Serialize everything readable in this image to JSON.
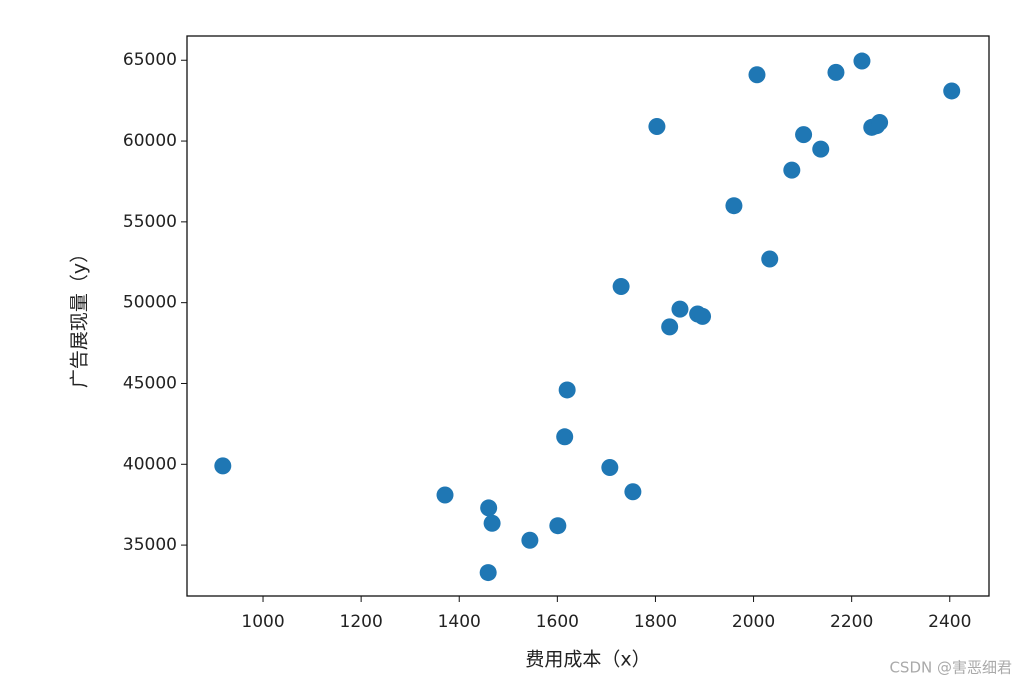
{
  "chart_data": {
    "type": "scatter",
    "xlabel": "费用成本（x）",
    "ylabel": "广告展现量（y）",
    "x": [
      918,
      1371,
      1460,
      1467,
      1459,
      1544,
      1601,
      1615,
      1620,
      1707,
      1754,
      1730,
      1829,
      1850,
      1886,
      1896,
      1803,
      1960,
      2033,
      2007,
      2078,
      2102,
      2137,
      2168,
      2221,
      2241,
      2251,
      2257,
      2404
    ],
    "series": [
      {
        "name": "y",
        "color": "#1f77b4",
        "values": [
          39900,
          38100,
          37300,
          36350,
          33300,
          35300,
          36200,
          41700,
          44600,
          39800,
          38300,
          51000,
          48500,
          49600,
          49300,
          49150,
          60900,
          56000,
          52700,
          64100,
          58200,
          60400,
          59500,
          64250,
          64950,
          60850,
          60950,
          61150,
          63100
        ]
      }
    ],
    "xlim": [
      845,
      2480
    ],
    "ylim": [
      31850,
      66500
    ],
    "xticks": [
      1000,
      1200,
      1400,
      1600,
      1800,
      2000,
      2200,
      2400
    ],
    "yticks": [
      35000,
      40000,
      45000,
      50000,
      55000,
      60000,
      65000
    ],
    "grid": false
  },
  "watermark": "CSDN @害恶细君"
}
